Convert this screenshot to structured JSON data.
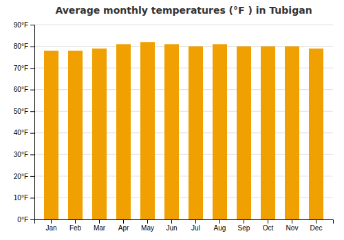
{
  "chart_data": {
    "type": "bar",
    "title": "Average monthly temperatures (°F ) in Tubigan",
    "categories": [
      "Jan",
      "Feb",
      "Mar",
      "Apr",
      "May",
      "Jun",
      "Jul",
      "Aug",
      "Sep",
      "Oct",
      "Nov",
      "Dec"
    ],
    "values": [
      78,
      78,
      79,
      81,
      82,
      81,
      80,
      81,
      80,
      80,
      80,
      79
    ],
    "color": "#F0A000",
    "ylim": [
      0,
      90
    ],
    "yticks": [
      {
        "value": 0,
        "label": "0°F"
      },
      {
        "value": 10,
        "label": "10°F"
      },
      {
        "value": 20,
        "label": "20°F"
      },
      {
        "value": 30,
        "label": "30°F"
      },
      {
        "value": 40,
        "label": "40°F"
      },
      {
        "value": 50,
        "label": "50°F"
      },
      {
        "value": 60,
        "label": "60°F"
      },
      {
        "value": 70,
        "label": "70°F"
      },
      {
        "value": 80,
        "label": "80°F"
      },
      {
        "value": 90,
        "label": "90°F"
      }
    ],
    "grid": true
  }
}
